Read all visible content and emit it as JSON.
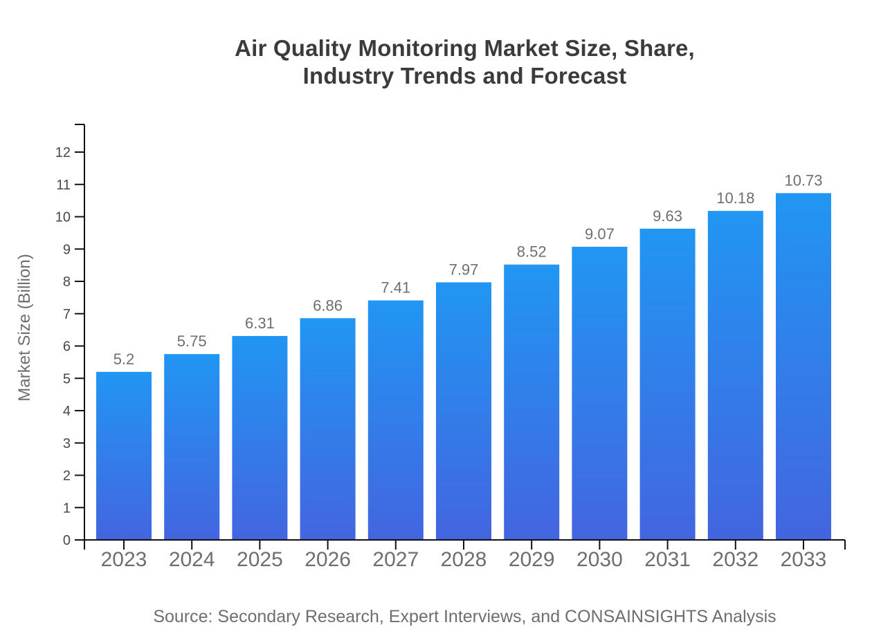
{
  "page": {
    "background": "#ffffff"
  },
  "chart_data": {
    "type": "bar",
    "title": "Air Quality Monitoring Market Size, Share, Industry Trends and Forecast",
    "title_lines": [
      "Air Quality Monitoring Market Size, Share,",
      "Industry Trends and Forecast"
    ],
    "xlabel": "",
    "ylabel": "Market Size (Billion)",
    "categories": [
      "2023",
      "2024",
      "2025",
      "2026",
      "2027",
      "2028",
      "2029",
      "2030",
      "2031",
      "2032",
      "2033"
    ],
    "values": [
      5.2,
      5.75,
      6.31,
      6.86,
      7.41,
      7.97,
      8.52,
      9.07,
      9.63,
      10.18,
      10.73
    ],
    "value_labels": [
      "5.2",
      "5.75",
      "6.31",
      "6.86",
      "7.41",
      "7.97",
      "8.52",
      "9.07",
      "9.63",
      "10.18",
      "10.73"
    ],
    "ylim": [
      0,
      12
    ],
    "yticks": [
      0,
      1,
      2,
      3,
      4,
      5,
      6,
      7,
      8,
      9,
      10,
      11,
      12
    ],
    "grid": false,
    "legend": "none",
    "bar_gradient": {
      "top": "#2196f3",
      "bottom": "#4365e0"
    },
    "axis_color": "#111111",
    "title_color": "#3b3b3b",
    "label_color": "#6e6e6e",
    "source_note": "Source: Secondary Research, Expert Interviews, and CONSAINSIGHTS Analysis"
  }
}
